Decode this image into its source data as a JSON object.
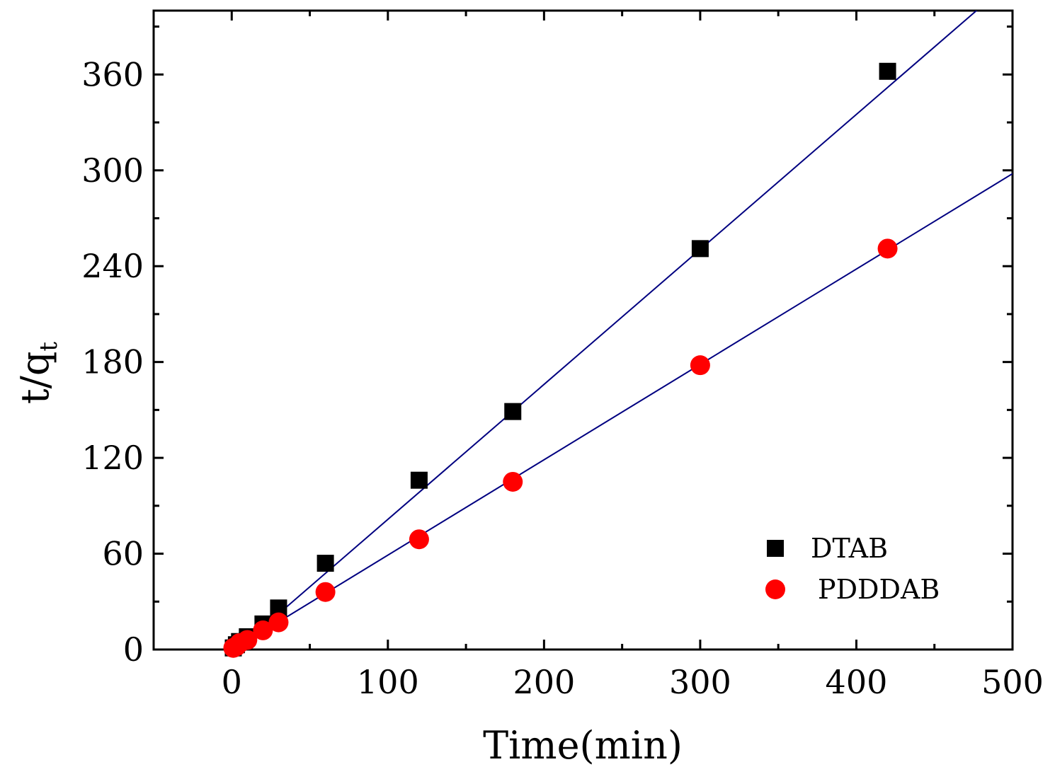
{
  "chart_data": {
    "type": "scatter",
    "title": "",
    "xlabel": "Time(min)",
    "ylabel": "t/q",
    "ylabel_subscript": "t",
    "xlim": [
      -50,
      500
    ],
    "ylim": [
      0,
      400
    ],
    "x_ticks": [
      0,
      100,
      200,
      300,
      400,
      500
    ],
    "y_ticks": [
      0,
      60,
      120,
      180,
      240,
      300,
      360
    ],
    "grid": false,
    "legend_position": "bottom-right",
    "series": [
      {
        "name": "DTAB",
        "marker": "square",
        "color": "#000000",
        "points": [
          {
            "x": 1,
            "y": 1
          },
          {
            "x": 3,
            "y": 3
          },
          {
            "x": 5,
            "y": 5
          },
          {
            "x": 10,
            "y": 8
          },
          {
            "x": 20,
            "y": 16
          },
          {
            "x": 30,
            "y": 26
          },
          {
            "x": 60,
            "y": 54
          },
          {
            "x": 120,
            "y": 106
          },
          {
            "x": 180,
            "y": 149
          },
          {
            "x": 300,
            "y": 251
          },
          {
            "x": 420,
            "y": 362
          }
        ],
        "fit": {
          "slope": 0.845,
          "intercept": -3,
          "color": "#000080"
        }
      },
      {
        "name": "PDDDAB",
        "marker": "circle",
        "color": "#ff0000",
        "points": [
          {
            "x": 1,
            "y": 1
          },
          {
            "x": 3,
            "y": 2
          },
          {
            "x": 5,
            "y": 4
          },
          {
            "x": 10,
            "y": 6
          },
          {
            "x": 20,
            "y": 12
          },
          {
            "x": 30,
            "y": 17
          },
          {
            "x": 60,
            "y": 36
          },
          {
            "x": 120,
            "y": 69
          },
          {
            "x": 180,
            "y": 105
          },
          {
            "x": 300,
            "y": 178
          },
          {
            "x": 420,
            "y": 251
          }
        ],
        "fit": {
          "slope": 0.597,
          "intercept": -0.6,
          "color": "#000080"
        }
      }
    ]
  }
}
